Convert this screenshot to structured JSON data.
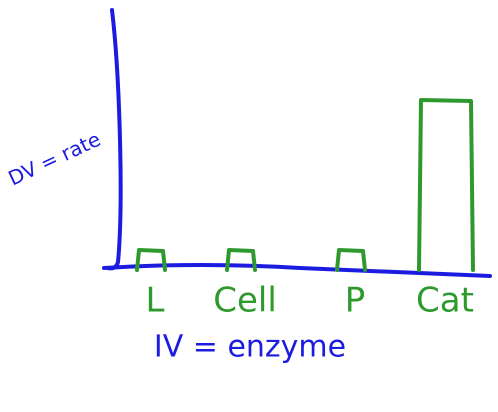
{
  "chart_data": {
    "type": "bar",
    "categories": [
      "L",
      "Cell",
      "P",
      "Cat"
    ],
    "values": [
      2,
      2,
      2,
      17
    ],
    "color": "#2e9a2e",
    "axis_color": "#1c1ce0",
    "xlabel": "IV = enzyme",
    "ylabel": "DV = rate",
    "ylim": [
      0,
      26
    ]
  }
}
